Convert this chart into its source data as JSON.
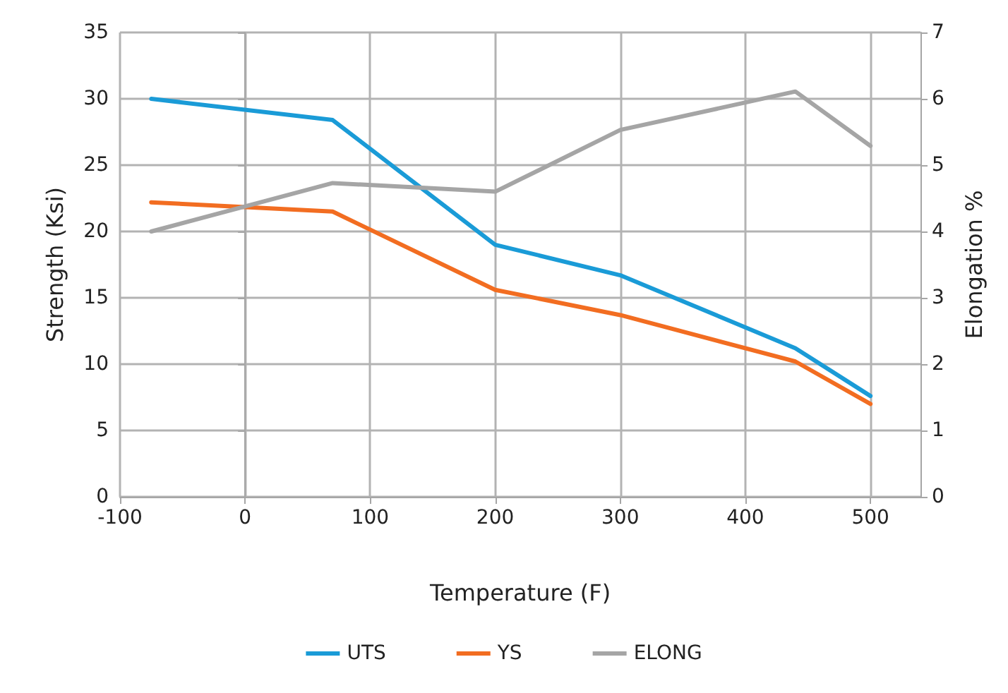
{
  "chart_data": {
    "type": "line",
    "xlabel": "Temperature (F)",
    "ylabel": "Strength (Ksi)",
    "y2label": "Elongation %",
    "x": [
      -75,
      70,
      200,
      300,
      440,
      500
    ],
    "series": [
      {
        "name": "UTS",
        "color": "#1a9bd7",
        "values": [
          30.0,
          28.4,
          19.0,
          16.7,
          11.2,
          7.6
        ]
      },
      {
        "name": "YS",
        "color": "#f26d21",
        "values": [
          22.2,
          21.5,
          15.6,
          13.7,
          10.2,
          7.0
        ]
      },
      {
        "name": "ELONG",
        "color": "#a5a5a5",
        "axis": "y2",
        "values": [
          4.0,
          4.73,
          4.6,
          5.53,
          6.11,
          5.29
        ]
      }
    ],
    "xlim": [
      -100,
      540
    ],
    "xticks": [
      -100,
      0,
      100,
      200,
      300,
      400,
      500
    ],
    "ylim": [
      0,
      35
    ],
    "yticks": [
      0,
      5,
      10,
      15,
      20,
      25,
      30,
      35
    ],
    "y2lim": [
      0,
      7
    ],
    "y2ticks": [
      0,
      1,
      2,
      3,
      4,
      5,
      6,
      7
    ],
    "grid": true,
    "legend": "bottom",
    "marker": "none",
    "line_style": "solid"
  }
}
